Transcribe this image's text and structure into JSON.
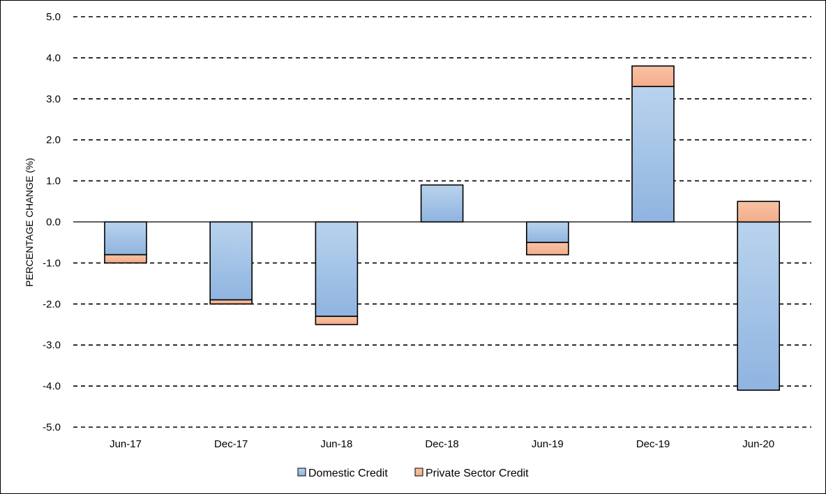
{
  "chart_data": {
    "type": "bar",
    "stacked": true,
    "title": "",
    "xlabel": "",
    "ylabel": "PERCENTAGE CHANGE (%)",
    "ylim": [
      -5.0,
      5.0
    ],
    "yticks": [
      "5.0",
      "4.0",
      "3.0",
      "2.0",
      "1.0",
      "0.0",
      "-1.0",
      "-2.0",
      "-3.0",
      "-4.0",
      "-5.0"
    ],
    "ytick_values": [
      5,
      4,
      3,
      2,
      1,
      0,
      -1,
      -2,
      -3,
      -4,
      -5
    ],
    "categories": [
      "Jun-17",
      "Dec-17",
      "Jun-18",
      "Dec-18",
      "Jun-19",
      "Dec-19",
      "Jun-20"
    ],
    "series": [
      {
        "name": "Domestic Credit",
        "color": "#9dc3e6",
        "values": [
          -0.8,
          -1.9,
          -2.3,
          0.9,
          -0.5,
          3.3,
          -4.1
        ]
      },
      {
        "name": "Private Sector Credit",
        "color": "#f4b183",
        "values": [
          -0.2,
          -0.1,
          -0.2,
          0.0,
          -0.3,
          0.5,
          0.5
        ]
      }
    ],
    "grid": "horizontal-dashed",
    "legend": "bottom-center"
  }
}
